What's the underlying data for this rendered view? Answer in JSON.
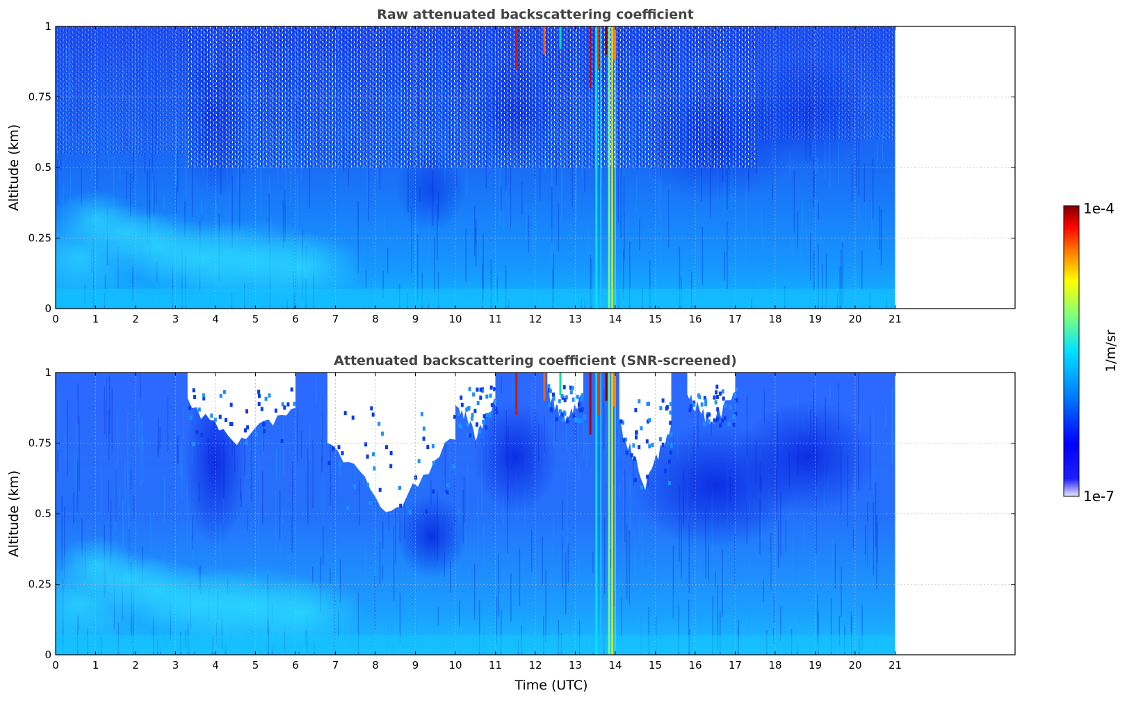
{
  "chart_data": [
    {
      "type": "heatmap",
      "title": "Raw attenuated backscattering coefficient",
      "xlabel": "",
      "ylabel": "Altitude (km)",
      "xlim": [
        0,
        24
      ],
      "ylim": [
        0,
        1
      ],
      "x_ticks": [
        "0",
        "1",
        "2",
        "3",
        "4",
        "5",
        "6",
        "7",
        "8",
        "9",
        "10",
        "11",
        "12",
        "13",
        "14",
        "15",
        "16",
        "17",
        "18",
        "19",
        "20",
        "21"
      ],
      "y_ticks": [
        "0",
        "0.25",
        "0.5",
        "0.75",
        "1"
      ],
      "data_extent_x": [
        0,
        21
      ],
      "grid": true,
      "colorscale": "jet (log)",
      "screened": false,
      "features": [
        {
          "kind": "aerosol layer",
          "x": [
            0,
            6.5
          ],
          "y": [
            0.1,
            0.4
          ],
          "level": "cyan"
        },
        {
          "kind": "noisy upper region",
          "x": [
            3.3,
            17.5
          ],
          "y": [
            0.5,
            1.0
          ],
          "level": "noise"
        },
        {
          "kind": "cloud/precip column",
          "x": [
            13.4,
            13.95
          ],
          "y": [
            0,
            1
          ],
          "level": "high"
        },
        {
          "kind": "isolated high returns",
          "x": [
            11.4,
            12.7
          ],
          "y": [
            0.75,
            1.0
          ],
          "level": "high"
        }
      ]
    },
    {
      "type": "heatmap",
      "title": "Attenuated backscattering coefficient (SNR-screened)",
      "xlabel": "Time (UTC)",
      "ylabel": "Altitude (km)",
      "xlim": [
        0,
        24
      ],
      "ylim": [
        0,
        1
      ],
      "x_ticks": [
        "0",
        "1",
        "2",
        "3",
        "4",
        "5",
        "6",
        "7",
        "8",
        "9",
        "10",
        "11",
        "12",
        "13",
        "14",
        "15",
        "16",
        "17",
        "18",
        "19",
        "20",
        "21"
      ],
      "y_ticks": [
        "0",
        "0.25",
        "0.5",
        "0.75",
        "1"
      ],
      "data_extent_x": [
        0,
        21
      ],
      "grid": true,
      "colorscale": "jet (log)",
      "screened": true,
      "screened_out_regions": [
        {
          "x": [
            3.3,
            6.0
          ],
          "y_min": 0.75
        },
        {
          "x": [
            6.8,
            10.0
          ],
          "y_min": 0.5
        },
        {
          "x": [
            10.0,
            11.0
          ],
          "y_min": 0.78
        },
        {
          "x": [
            12.3,
            13.2
          ],
          "y_min": 0.83
        },
        {
          "x": [
            14.1,
            15.4
          ],
          "y_min": 0.6
        },
        {
          "x": [
            15.8,
            17.0
          ],
          "y_min": 0.82
        }
      ]
    }
  ],
  "colorbar": {
    "label": "1/m/sr",
    "max_label": "1e-4",
    "min_label": "1e-7",
    "colors": [
      "#7f0000",
      "#ff0000",
      "#ff8000",
      "#ffff00",
      "#80ff80",
      "#00ffff",
      "#0080ff",
      "#0000ff",
      "#e6e6ff"
    ]
  }
}
